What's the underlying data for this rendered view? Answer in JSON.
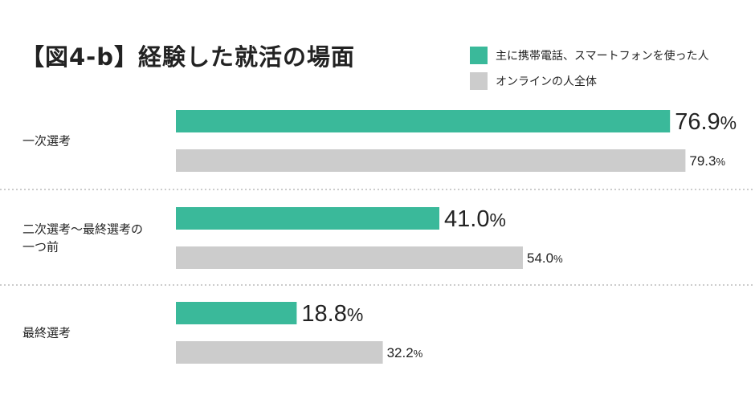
{
  "chart_data": {
    "type": "bar",
    "orientation": "horizontal",
    "title": "【図4-b】経験した就活の場面",
    "categories": [
      "一次選考",
      "二次選考〜最終選考の一つ前",
      "最終選考"
    ],
    "category_lines": [
      [
        "一次選考"
      ],
      [
        "二次選考〜最終選考の",
        "一つ前"
      ],
      [
        "最終選考"
      ]
    ],
    "series": [
      {
        "name": "主に携帯電話、スマートフォンを使った人",
        "color": "#3ab99a",
        "values": [
          76.9,
          41.0,
          18.8
        ]
      },
      {
        "name": "オンラインの人全体",
        "color": "#cccccc",
        "values": [
          79.3,
          54.0,
          32.2
        ]
      }
    ],
    "value_labels": [
      [
        "76.9",
        "41.0",
        "18.8"
      ],
      [
        "79.3",
        "54.0",
        "32.2"
      ]
    ],
    "unit": "%",
    "xlim": [
      0,
      100
    ],
    "legend_position": "top-right",
    "grid": false
  }
}
